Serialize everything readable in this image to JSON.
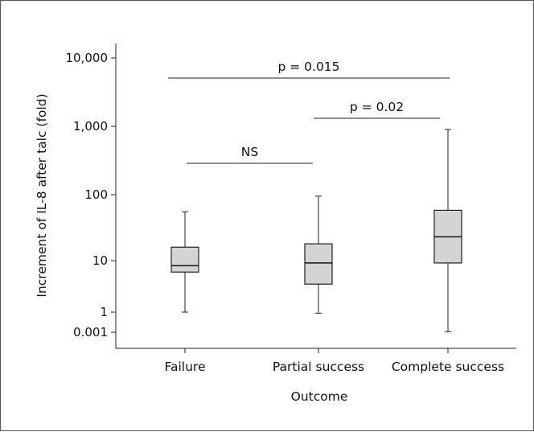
{
  "chart_data": {
    "type": "box",
    "title": "",
    "xlabel": "Outcome",
    "ylabel": "Increment of IL-8 after talc (fold)",
    "y_ticks": [
      "10,000",
      "1,000",
      "100",
      "10",
      "1",
      "0.001"
    ],
    "categories": [
      "Failure",
      "Partial success",
      "Complete success"
    ],
    "boxes": [
      {
        "category": "Failure",
        "min": 1.0,
        "q1": 6,
        "median": 8,
        "q3": 16,
        "max": 55
      },
      {
        "category": "Partial success",
        "min": 0.7,
        "q1": 3.5,
        "median": 9,
        "q3": 18,
        "max": 95
      },
      {
        "category": "Complete success",
        "min": 0.0012,
        "q1": 9,
        "median": 23,
        "q3": 58,
        "max": 900
      }
    ],
    "comparisons": [
      {
        "from": "Failure",
        "to": "Complete success",
        "label": "p = 0.015"
      },
      {
        "from": "Partial success",
        "to": "Complete success",
        "label": "p = 0.02"
      },
      {
        "from": "Failure",
        "to": "Partial success",
        "label": "NS"
      }
    ],
    "box_fill": "#d4d4d4",
    "grid": false
  }
}
